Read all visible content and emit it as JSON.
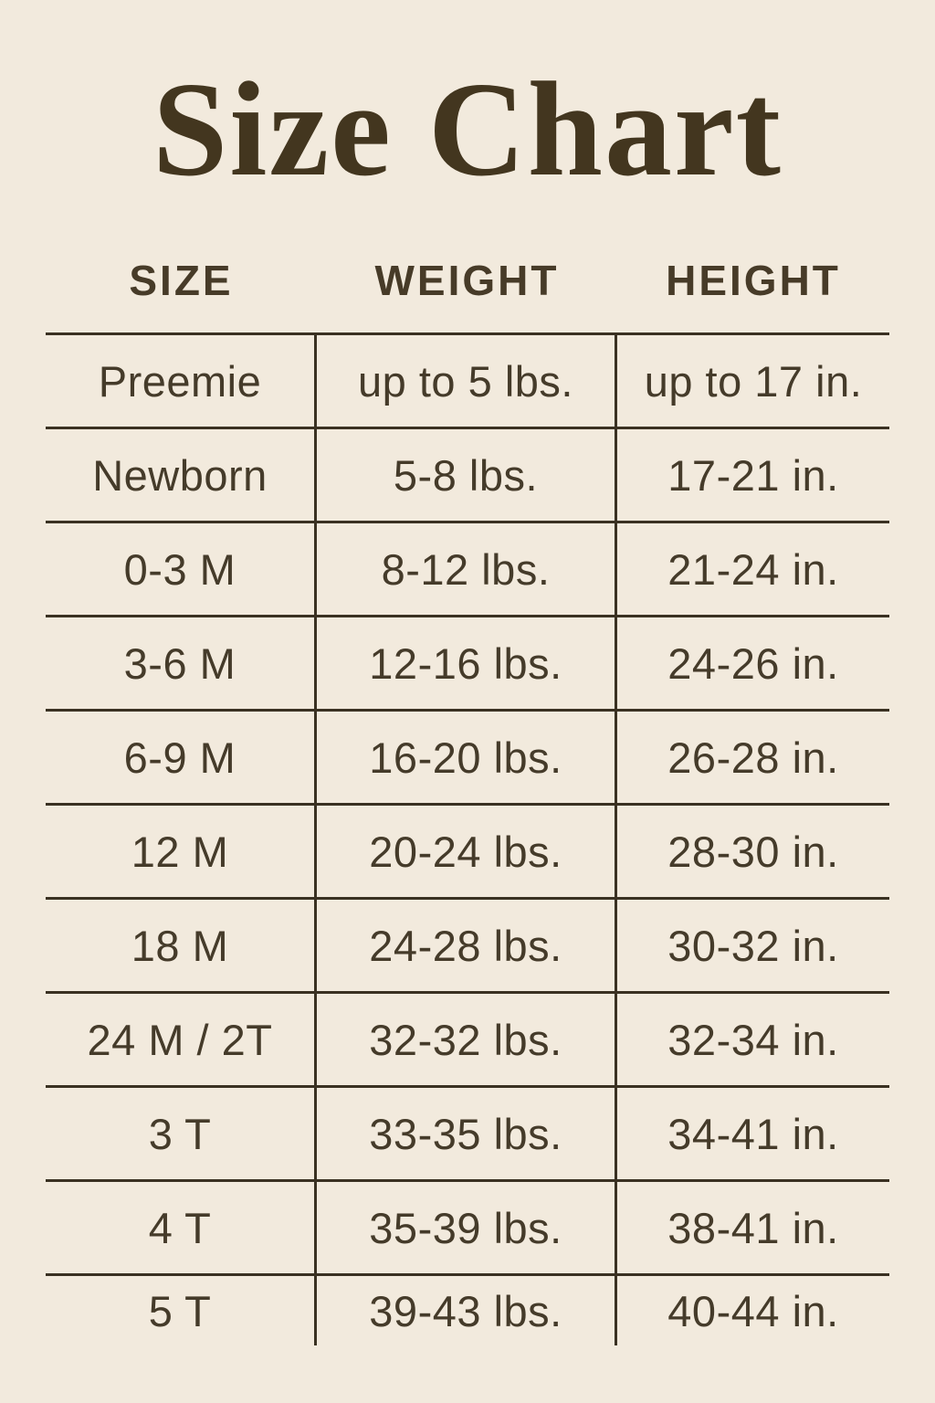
{
  "page": {
    "background_color": "#f2eadd",
    "text_color": "#453b2a",
    "line_color": "#3a3122",
    "title_color": "#43361f"
  },
  "title": "Size Chart",
  "table": {
    "headers": {
      "size": "SIZE",
      "weight": "WEIGHT",
      "height": "HEIGHT"
    },
    "rows": [
      {
        "size": "Preemie",
        "weight": "up to 5 lbs.",
        "height": "up to 17 in."
      },
      {
        "size": "Newborn",
        "weight": "5-8 lbs.",
        "height": "17-21 in."
      },
      {
        "size": "0-3 M",
        "weight": "8-12 lbs.",
        "height": "21-24 in."
      },
      {
        "size": "3-6 M",
        "weight": "12-16 lbs.",
        "height": "24-26 in."
      },
      {
        "size": "6-9 M",
        "weight": "16-20 lbs.",
        "height": "26-28 in."
      },
      {
        "size": "12 M",
        "weight": "20-24 lbs.",
        "height": "28-30 in."
      },
      {
        "size": "18 M",
        "weight": "24-28 lbs.",
        "height": "30-32 in."
      },
      {
        "size": "24 M / 2T",
        "weight": "32-32 lbs.",
        "height": "32-34 in."
      },
      {
        "size": "3 T",
        "weight": "33-35 lbs.",
        "height": "34-41 in."
      },
      {
        "size": "4 T",
        "weight": "35-39 lbs.",
        "height": "38-41 in."
      },
      {
        "size": "5 T",
        "weight": "39-43 lbs.",
        "height": "40-44 in."
      }
    ]
  },
  "chart_data": {
    "type": "table",
    "title": "Size Chart",
    "columns": [
      "SIZE",
      "WEIGHT",
      "HEIGHT"
    ],
    "rows": [
      [
        "Preemie",
        "up to 5 lbs.",
        "up to 17 in."
      ],
      [
        "Newborn",
        "5-8 lbs.",
        "17-21 in."
      ],
      [
        "0-3 M",
        "8-12 lbs.",
        "21-24 in."
      ],
      [
        "3-6 M",
        "12-16 lbs.",
        "24-26 in."
      ],
      [
        "6-9 M",
        "16-20 lbs.",
        "26-28 in."
      ],
      [
        "12 M",
        "20-24 lbs.",
        "28-30 in."
      ],
      [
        "18 M",
        "24-28 lbs.",
        "30-32 in."
      ],
      [
        "24 M / 2T",
        "32-32 lbs.",
        "32-34 in."
      ],
      [
        "3 T",
        "33-35 lbs.",
        "34-41 in."
      ],
      [
        "4 T",
        "35-39 lbs.",
        "38-41 in."
      ],
      [
        "5 T",
        "39-43 lbs.",
        "40-44 in."
      ]
    ]
  }
}
